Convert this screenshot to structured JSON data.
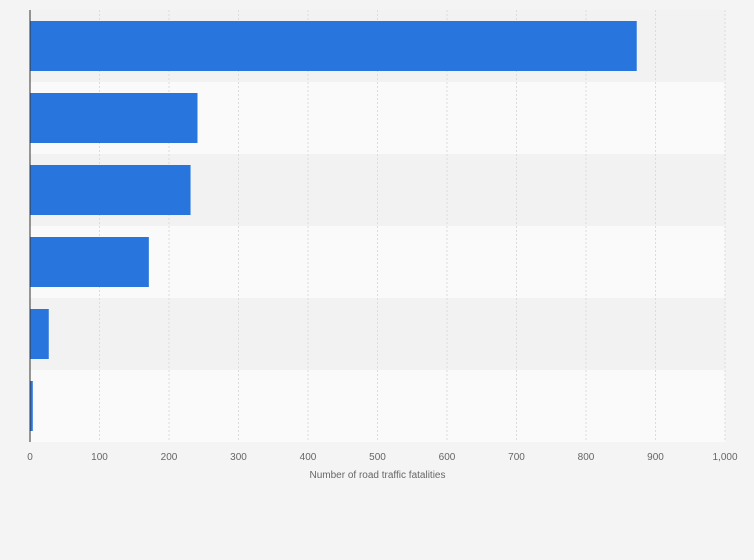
{
  "chart_data": {
    "type": "bar",
    "orientation": "horizontal",
    "categories": [
      "",
      "",
      "",
      "",
      "",
      ""
    ],
    "values": [
      873,
      241,
      231,
      171,
      27,
      4
    ],
    "title": "",
    "xlabel": "Number of road traffic fatalities",
    "ylabel": "",
    "xlim": [
      0,
      1000
    ],
    "xticks": [
      0,
      100,
      200,
      300,
      400,
      500,
      600,
      700,
      800,
      900,
      1000
    ],
    "xtick_labels": [
      "0",
      "100",
      "200",
      "300",
      "400",
      "500",
      "600",
      "700",
      "800",
      "900",
      "1,000"
    ],
    "grid": true,
    "bar_color": "#2876dd"
  }
}
